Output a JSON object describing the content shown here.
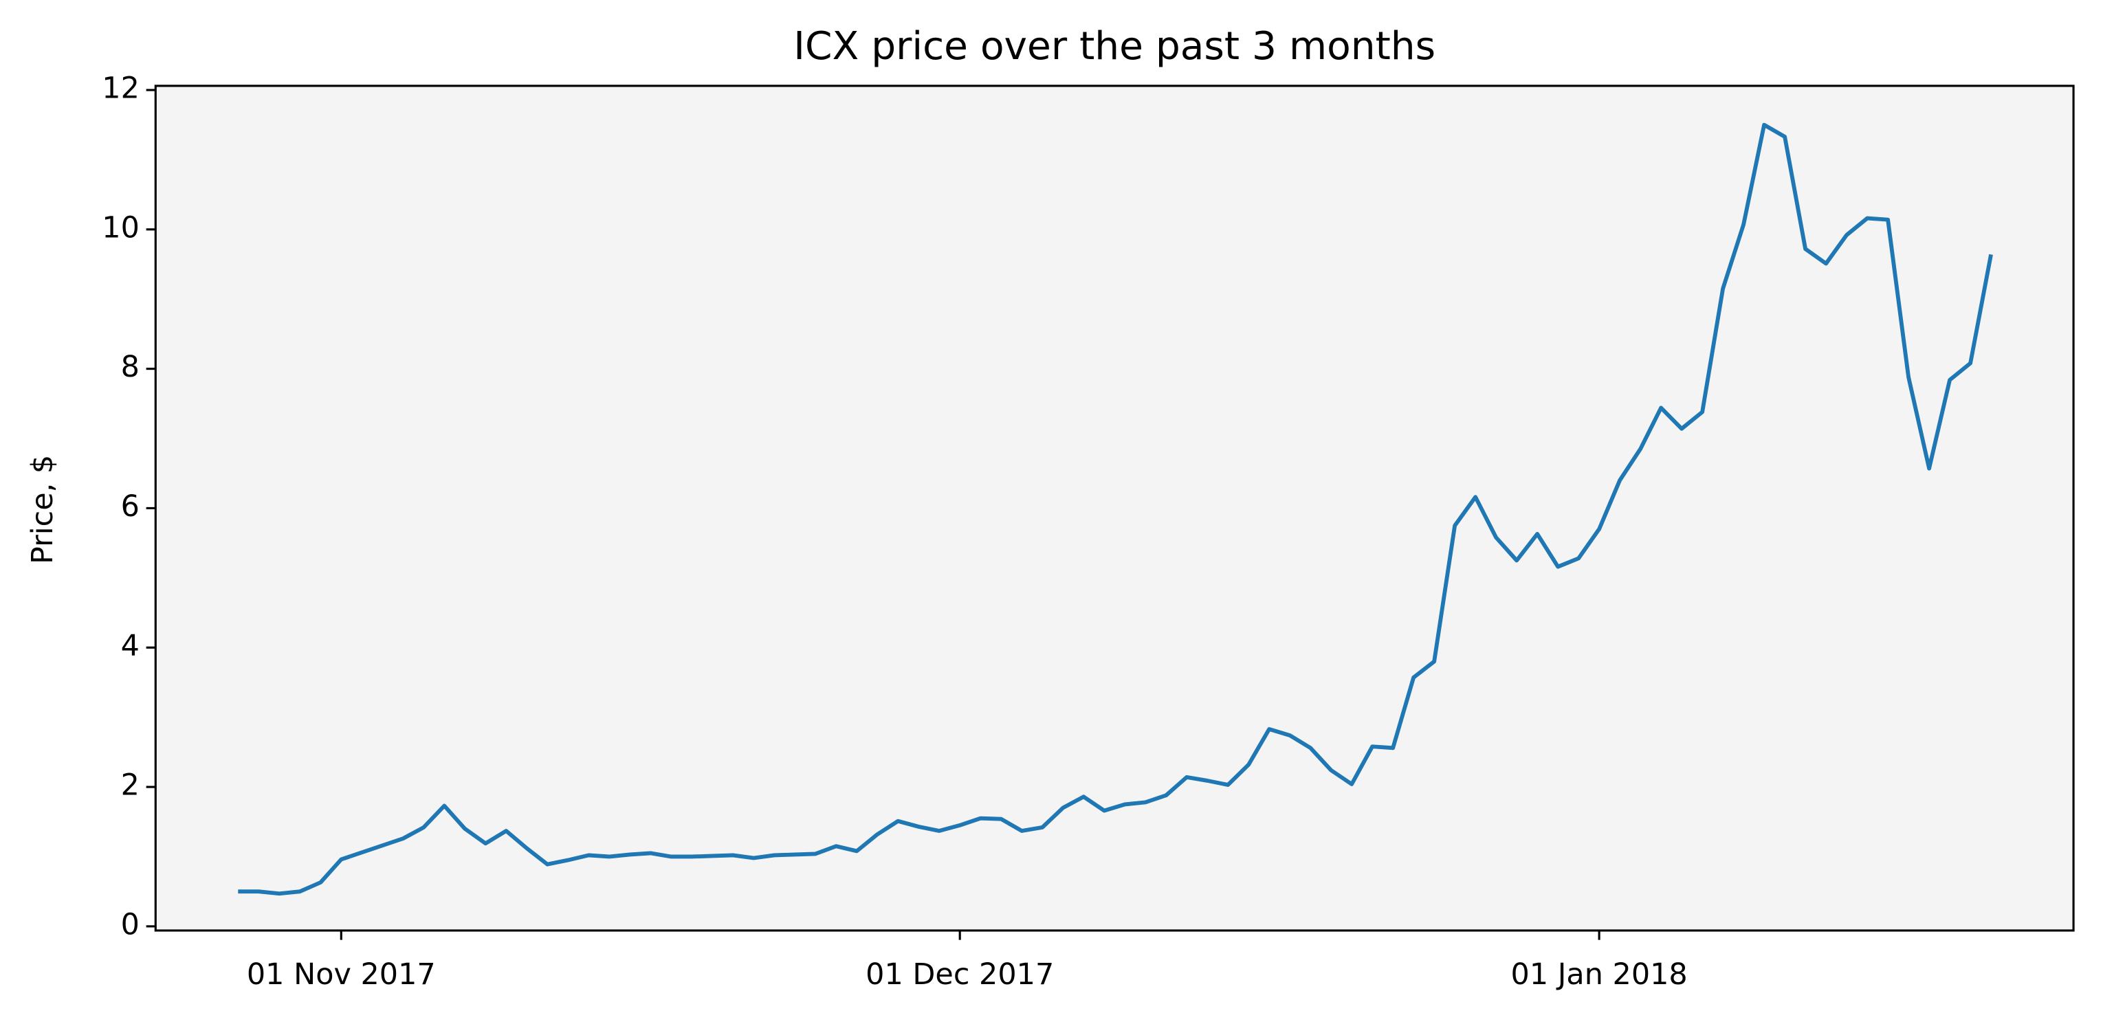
{
  "chart_data": {
    "type": "line",
    "title": "ICX price over the past 3 months",
    "y_label": "Price, $",
    "x": [
      "2017-10-27",
      "2017-10-28",
      "2017-10-29",
      "2017-10-30",
      "2017-10-31",
      "2017-11-01",
      "2017-11-02",
      "2017-11-03",
      "2017-11-04",
      "2017-11-05",
      "2017-11-06",
      "2017-11-07",
      "2017-11-08",
      "2017-11-09",
      "2017-11-10",
      "2017-11-11",
      "2017-11-12",
      "2017-11-13",
      "2017-11-14",
      "2017-11-15",
      "2017-11-16",
      "2017-11-17",
      "2017-11-18",
      "2017-11-19",
      "2017-11-20",
      "2017-11-21",
      "2017-11-22",
      "2017-11-23",
      "2017-11-24",
      "2017-11-25",
      "2017-11-26",
      "2017-11-27",
      "2017-11-28",
      "2017-11-29",
      "2017-11-30",
      "2017-12-01",
      "2017-12-02",
      "2017-12-03",
      "2017-12-04",
      "2017-12-05",
      "2017-12-06",
      "2017-12-07",
      "2017-12-08",
      "2017-12-09",
      "2017-12-10",
      "2017-12-11",
      "2017-12-12",
      "2017-12-13",
      "2017-12-14",
      "2017-12-15",
      "2017-12-16",
      "2017-12-17",
      "2017-12-18",
      "2017-12-19",
      "2017-12-20",
      "2017-12-21",
      "2017-12-22",
      "2017-12-23",
      "2017-12-24",
      "2017-12-25",
      "2017-12-26",
      "2017-12-27",
      "2017-12-28",
      "2017-12-29",
      "2017-12-30",
      "2017-12-31",
      "2018-01-01",
      "2018-01-02",
      "2018-01-03",
      "2018-01-04",
      "2018-01-05",
      "2018-01-06",
      "2018-01-07",
      "2018-01-08",
      "2018-01-09",
      "2018-01-10",
      "2018-01-11",
      "2018-01-12",
      "2018-01-13",
      "2018-01-14",
      "2018-01-15",
      "2018-01-16",
      "2018-01-17",
      "2018-01-18",
      "2018-01-19",
      "2018-01-20"
    ],
    "series": [
      {
        "name": "ICX",
        "color": "#1f77b4",
        "values": [
          0.5,
          0.5,
          0.47,
          0.5,
          0.63,
          0.96,
          1.06,
          1.16,
          1.26,
          1.42,
          1.73,
          1.4,
          1.19,
          1.37,
          1.12,
          0.89,
          0.95,
          1.02,
          1.0,
          1.03,
          1.05,
          1.0,
          1.0,
          1.01,
          1.02,
          0.98,
          1.02,
          1.03,
          1.04,
          1.15,
          1.08,
          1.32,
          1.51,
          1.43,
          1.37,
          1.45,
          1.55,
          1.54,
          1.37,
          1.42,
          1.7,
          1.86,
          1.66,
          1.75,
          1.78,
          1.88,
          2.14,
          2.09,
          2.03,
          2.32,
          2.83,
          2.74,
          2.56,
          2.24,
          2.04,
          2.58,
          2.56,
          3.57,
          3.8,
          5.75,
          6.16,
          5.58,
          5.25,
          5.63,
          5.16,
          5.28,
          5.7,
          6.4,
          6.85,
          7.44,
          7.14,
          7.38,
          9.15,
          10.07,
          11.5,
          11.33,
          9.72,
          9.51,
          9.92,
          10.16,
          10.14,
          7.88,
          6.57,
          7.84,
          8.08,
          9.64
        ]
      }
    ],
    "xlim": [
      "2017-10-23",
      "2018-01-24"
    ],
    "xticks": [
      {
        "value": "2017-11-01",
        "label": "01 Nov 2017"
      },
      {
        "value": "2017-12-01",
        "label": "01 Dec 2017"
      },
      {
        "value": "2018-01-01",
        "label": "01 Jan 2018"
      }
    ],
    "ylim": [
      -0.06,
      12.06
    ],
    "yticks": [
      0,
      2,
      4,
      6,
      8,
      10,
      12
    ],
    "background": "#f4f4f4"
  }
}
